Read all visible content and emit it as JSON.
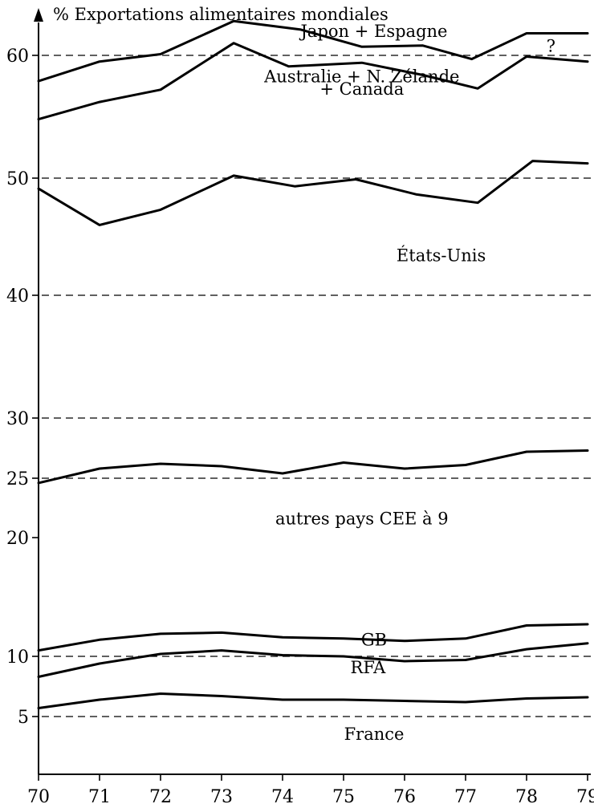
{
  "chart_data": {
    "type": "line",
    "title": "% Exportations alimentaires mondiales",
    "xlabel": "",
    "ylabel": "",
    "x": [
      70,
      71,
      72,
      73,
      74,
      75,
      76,
      77,
      78,
      79
    ],
    "x_tick_labels": [
      "70",
      "71",
      "72",
      "73",
      "74",
      "75",
      "76",
      "77",
      "78",
      "79"
    ],
    "y_ticks": [
      5,
      10,
      20,
      25,
      30,
      40,
      50,
      60
    ],
    "y_tick_labels": [
      "5",
      "10",
      "20",
      "25",
      "30",
      "40",
      "50",
      "60"
    ],
    "reference_lines": [
      5,
      10,
      25,
      30,
      40,
      50,
      60
    ],
    "series": [
      {
        "x": [
          70,
          71,
          72,
          73.2,
          74.3,
          75.3,
          76.3,
          77.1,
          78,
          79
        ],
        "values": [
          57.9,
          59.5,
          60.1,
          62.8,
          62.1,
          60.7,
          60.8,
          59.7,
          61.8,
          61.8
        ]
      },
      {
        "x": [
          70,
          71,
          72,
          73.2,
          74.1,
          75.3,
          76.3,
          77.2,
          78,
          79
        ],
        "values": [
          54.8,
          56.2,
          57.2,
          61.0,
          59.1,
          59.4,
          58.4,
          57.3,
          59.9,
          59.5
        ]
      },
      {
        "x": [
          70,
          71,
          72,
          73.2,
          74.2,
          75.2,
          76.2,
          77.2,
          78.1,
          79
        ],
        "values": [
          49.1,
          46.0,
          47.3,
          50.2,
          49.3,
          49.9,
          48.6,
          47.9,
          51.4,
          51.2
        ]
      },
      {
        "x": [
          70,
          71,
          72,
          73,
          74,
          75,
          76,
          77,
          78,
          79
        ],
        "values": [
          24.6,
          25.8,
          26.2,
          26.0,
          25.4,
          26.3,
          25.8,
          26.1,
          27.2,
          27.3
        ]
      },
      {
        "x": [
          70,
          71,
          72,
          73,
          74,
          75,
          76,
          77,
          78,
          79
        ],
        "values": [
          10.5,
          11.4,
          11.9,
          12.0,
          11.6,
          11.5,
          11.3,
          11.5,
          12.6,
          12.7
        ]
      },
      {
        "x": [
          70,
          71,
          72,
          73,
          74,
          75,
          76,
          77,
          78,
          79
        ],
        "values": [
          8.3,
          9.4,
          10.2,
          10.5,
          10.1,
          10.0,
          9.6,
          9.7,
          10.6,
          11.1
        ]
      },
      {
        "x": [
          70,
          71,
          72,
          73,
          74,
          75,
          76,
          77,
          78,
          79
        ],
        "values": [
          5.7,
          6.4,
          6.9,
          6.7,
          6.4,
          6.4,
          6.3,
          6.2,
          6.5,
          6.6
        ]
      }
    ],
    "region_labels": [
      {
        "text": "Japon + Espagne",
        "x": 75.5,
        "y": 61.5
      },
      {
        "text": "?",
        "x": 78.4,
        "y": 60.3
      },
      {
        "text": "Australie + N. Zélande",
        "x": 75.3,
        "y": 57.8
      },
      {
        "text": "+ Canada",
        "x": 75.3,
        "y": 56.8
      },
      {
        "text": "États-Unis",
        "x": 76.6,
        "y": 42.9
      },
      {
        "text": "autres pays CEE à 9",
        "x": 75.3,
        "y": 21.1
      },
      {
        "text": "GB",
        "x": 75.5,
        "y": 10.9
      },
      {
        "text": "RFA",
        "x": 75.4,
        "y": 8.6
      },
      {
        "text": "France",
        "x": 75.5,
        "y": 3.0
      }
    ],
    "colors": {
      "lines": "#000000",
      "reference_lines": "#000000",
      "background": "#ffffff"
    }
  }
}
